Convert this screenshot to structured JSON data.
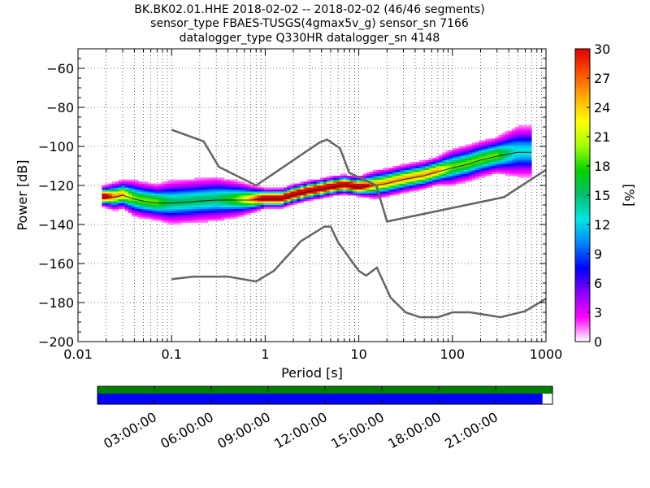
{
  "title_lines": [
    "BK.BK02.01.HHE   2018-02-02 -- 2018-02-02  (46/46 segments)",
    "sensor_type FBAES-TUSGS(4gmax5v_g) sensor_sn 7166",
    "datalogger_type Q330HR datalogger_sn 4148"
  ],
  "chart_data": {
    "type": "heatmap",
    "xlabel": "Period [s]",
    "ylabel": "Power [dB]",
    "x_scale": "log",
    "xlim": [
      0.01,
      1000
    ],
    "ylim": [
      -200,
      -50
    ],
    "x_ticks": [
      0.01,
      0.1,
      1,
      10,
      100,
      1000
    ],
    "x_tick_labels": [
      "0.01",
      "0.1",
      "1",
      "10",
      "100",
      "1000"
    ],
    "y_ticks": [
      -200,
      -180,
      -160,
      -140,
      -120,
      -100,
      -80,
      -60
    ],
    "y_tick_labels": [
      "−200",
      "−180",
      "−160",
      "−140",
      "−120",
      "−100",
      "−80",
      "−60"
    ],
    "grid": true,
    "colorbar": {
      "label": "[%]",
      "range": [
        0,
        30
      ],
      "ticks": [
        0,
        3,
        6,
        9,
        12,
        15,
        18,
        21,
        24,
        27,
        30
      ],
      "tick_labels": [
        "0",
        "3",
        "6",
        "9",
        "12",
        "15",
        "18",
        "21",
        "24",
        "27",
        "30"
      ],
      "colormap": [
        "#ffffff",
        "#ff00ff",
        "#8800ff",
        "#0000ff",
        "#0080ff",
        "#00e6e6",
        "#00c070",
        "#00d000",
        "#a0ff00",
        "#ffff00",
        "#ffb000",
        "#ff5000",
        "#e00000"
      ]
    },
    "mode_curve": {
      "x": [
        0.018,
        0.025,
        0.03,
        0.04,
        0.05,
        0.07,
        0.1,
        0.15,
        0.2,
        0.3,
        0.5,
        0.7,
        1,
        1.5,
        2,
        3,
        4,
        5,
        7,
        10,
        15,
        20,
        30,
        50,
        70,
        100,
        150,
        200,
        300,
        500,
        700
      ],
      "y": [
        -126,
        -126,
        -125,
        -127,
        -128,
        -129,
        -129,
        -128.5,
        -128,
        -127.5,
        -127.5,
        -127.5,
        -127,
        -127,
        -125,
        -123,
        -122,
        -121,
        -120,
        -121,
        -120,
        -119,
        -117,
        -115,
        -113,
        -111,
        -109,
        -107,
        -105,
        -103,
        -103
      ]
    },
    "spread_dB": [
      2,
      3,
      3,
      4,
      4,
      4,
      5,
      5,
      5,
      5,
      4,
      3,
      2,
      2,
      2,
      2,
      2,
      2,
      2,
      2,
      3,
      3,
      3,
      3,
      3,
      4,
      4,
      4,
      4,
      6,
      6
    ],
    "nhnm": {
      "x": [
        0.1,
        0.22,
        0.32,
        0.8,
        3.8,
        4.6,
        6.3,
        7.9,
        15.4,
        20,
        354.8,
        1000
      ],
      "y": [
        -91.5,
        -97.4,
        -110.5,
        -120,
        -98,
        -96.5,
        -101,
        -113.5,
        -120,
        -138.5,
        -126,
        -112
      ]
    },
    "nlnm": {
      "x": [
        0.1,
        0.17,
        0.4,
        0.8,
        1.24,
        2.4,
        4.3,
        5,
        6,
        10,
        12,
        15.6,
        21.9,
        31.6,
        45,
        70,
        101,
        154,
        328,
        600,
        1000
      ],
      "y": [
        -168,
        -166.7,
        -166.7,
        -169.2,
        -163.7,
        -148.6,
        -141.1,
        -141.1,
        -149,
        -163.8,
        -166.2,
        -162.1,
        -177.5,
        -185,
        -187.5,
        -187.5,
        -185,
        -185,
        -187.5,
        -184.4,
        -178
      ]
    }
  },
  "timeline": {
    "time_labels": [
      "03:00:00",
      "06:00:00",
      "09:00:00",
      "12:00:00",
      "15:00:00",
      "18:00:00",
      "21:00:00"
    ],
    "data_coverage_fraction": 1.0,
    "psd_coverage_fraction": 0.978,
    "colors": {
      "data": "#008000",
      "psd": "#0000ff"
    }
  }
}
